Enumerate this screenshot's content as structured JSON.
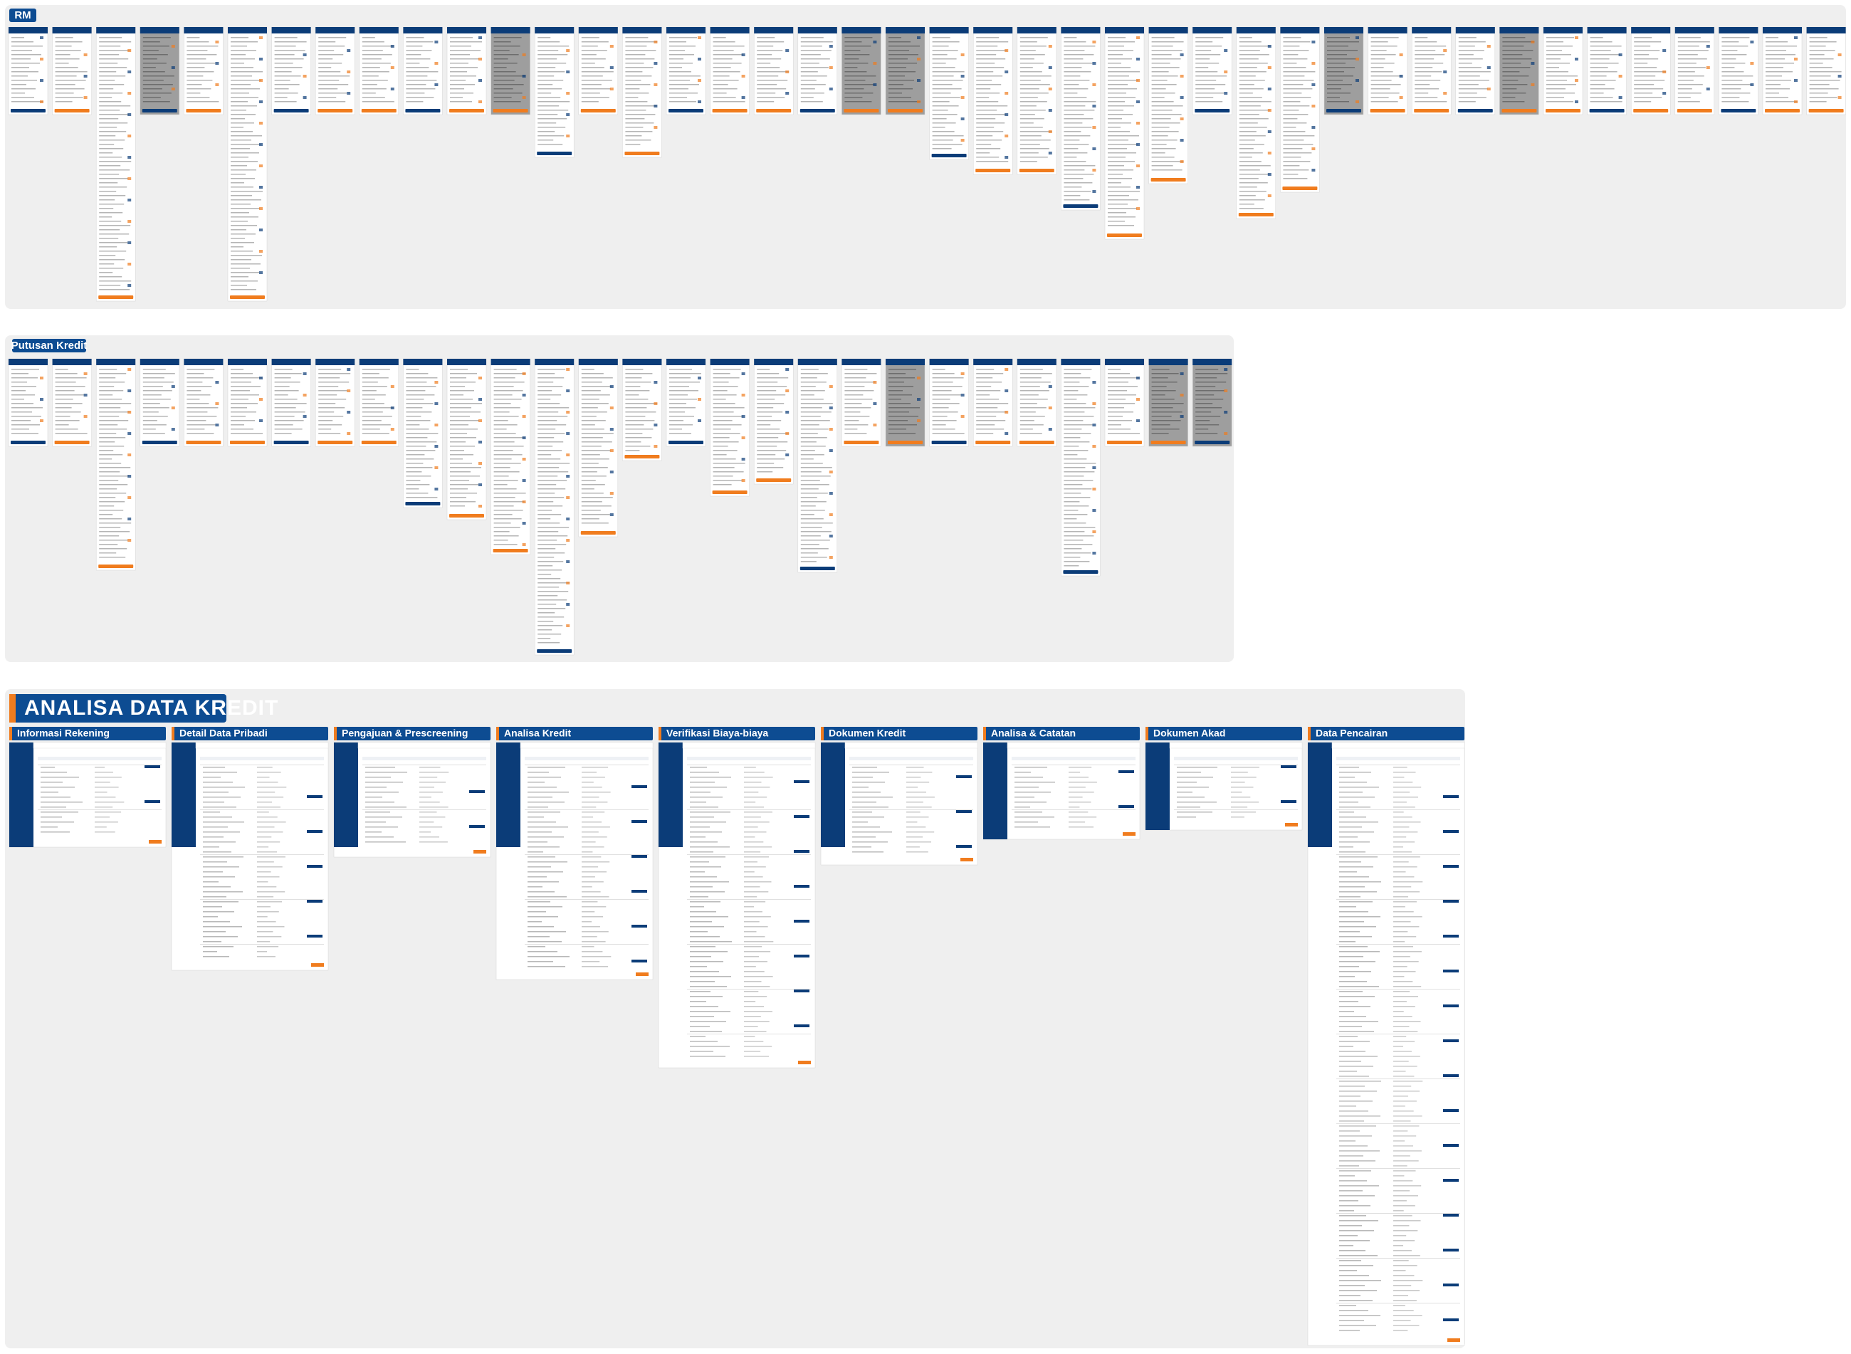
{
  "boards": [
    {
      "title": "RM"
    },
    {
      "title": "Putusan Kredit"
    },
    {
      "title": "ANALISA DATA KREDIT",
      "sections": [
        {
          "title": "Informasi Rekening"
        },
        {
          "title": "Detail Data Pribadi"
        },
        {
          "title": "Pengajuan & Prescreening"
        },
        {
          "title": "Analisa Kredit"
        },
        {
          "title": "Verifikasi Biaya-biaya"
        },
        {
          "title": "Dokumen Kredit"
        },
        {
          "title": "Analisa & Catatan"
        },
        {
          "title": "Dokumen Akad"
        },
        {
          "title": "Data Pencairan"
        }
      ]
    }
  ]
}
